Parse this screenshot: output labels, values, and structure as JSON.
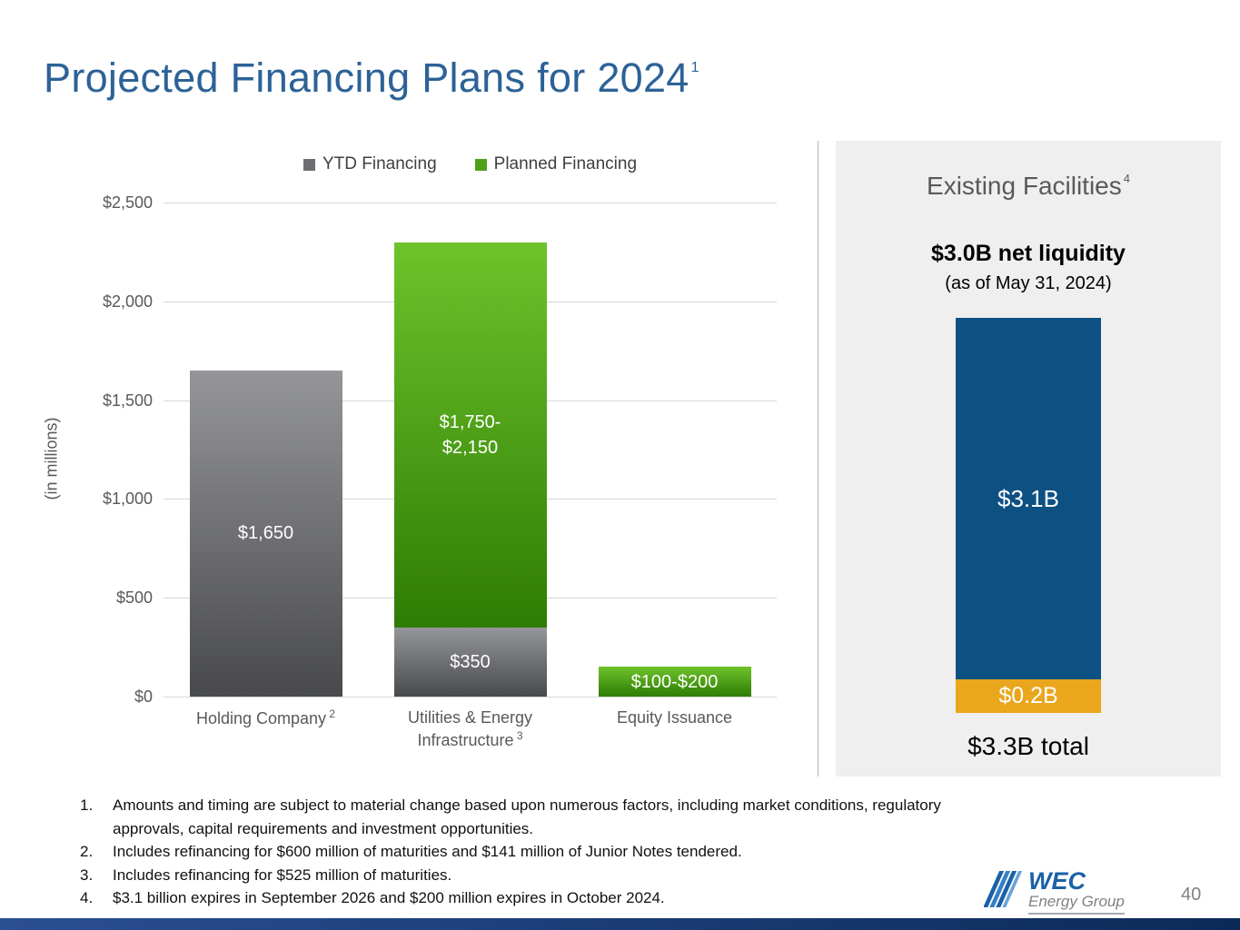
{
  "slide": {
    "title": "Projected Financing Plans for 2024",
    "title_superscript": "1",
    "page_number": "40",
    "title_color": "#2c6297"
  },
  "chart_data": {
    "type": "bar",
    "stacked": true,
    "ylabel": "(in millions)",
    "ylim": [
      0,
      2500
    ],
    "ytick_labels": [
      "$0",
      "$500",
      "$1,000",
      "$1,500",
      "$2,000",
      "$2,500"
    ],
    "grid": "horizontal",
    "legend_position": "top",
    "categories": [
      "Holding Company",
      "Utilities & Energy Infrastructure",
      "Equity Issuance"
    ],
    "category_superscripts": [
      "2",
      "3",
      ""
    ],
    "series": [
      {
        "name": "YTD Financing",
        "color": "#6d6e71",
        "values": [
          1650,
          350,
          0
        ],
        "labels": [
          "$1,650",
          "$350",
          ""
        ]
      },
      {
        "name": "Planned Financing",
        "color": "#4ea018",
        "values": [
          0,
          1950,
          150
        ],
        "labels": [
          "",
          "$1,750-\n$2,150",
          "$100-$200"
        ]
      }
    ]
  },
  "panel": {
    "title": "Existing Facilities",
    "title_superscript": "4",
    "liquidity_headline": "$3.0B net liquidity",
    "liquidity_subtext": "(as of May 31, 2024)",
    "bar_segments": [
      {
        "label": "$3.1B",
        "value_billions": 3.1,
        "color": "#0d5183"
      },
      {
        "label": "$0.2B",
        "value_billions": 0.2,
        "color": "#eaa61c"
      }
    ],
    "total_label": "$3.3B total"
  },
  "footnotes": [
    "Amounts and timing are subject to material change based upon numerous factors, including market conditions, regulatory approvals, capital requirements and investment opportunities.",
    "Includes refinancing for $600 million of maturities and $141 million of Junior Notes tendered.",
    "Includes refinancing for $525 million of maturities.",
    "$3.1 billion expires in September 2026 and $200 million expires in October 2024."
  ],
  "logo": {
    "brand": "WEC",
    "subbrand": "Energy Group"
  }
}
